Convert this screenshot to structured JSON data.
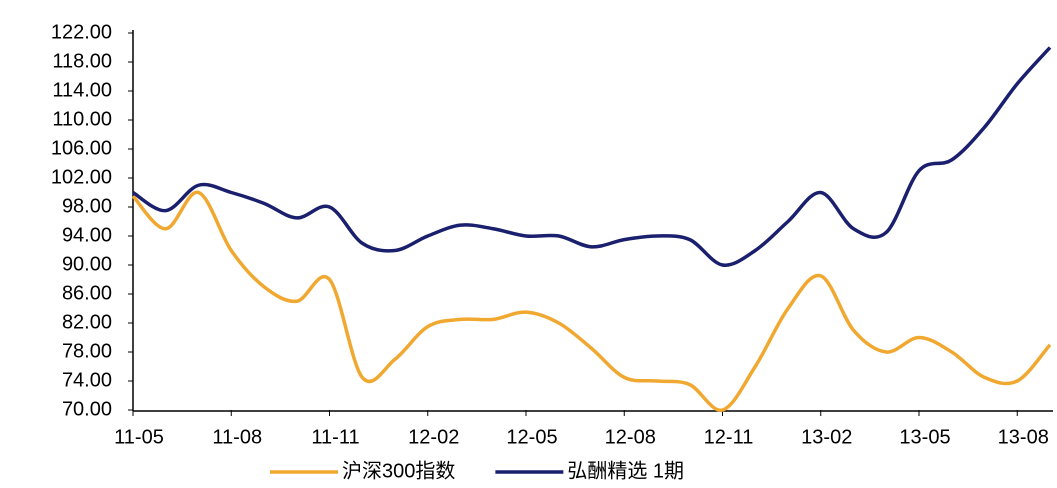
{
  "chart_data": {
    "type": "line",
    "categories": [
      "11-05",
      null,
      null,
      "11-08",
      null,
      null,
      "11-11",
      null,
      null,
      "12-02",
      null,
      null,
      "12-05",
      null,
      null,
      "12-08",
      null,
      null,
      "12-11",
      null,
      null,
      "13-02",
      null,
      null,
      "13-05",
      null,
      null,
      "13-08",
      null
    ],
    "series": [
      {
        "name": "沪深300指数",
        "color": "#f0a830",
        "values": [
          99.5,
          95,
          100,
          92,
          87,
          85,
          88,
          74.5,
          77,
          81.5,
          82.5,
          82.5,
          83.5,
          82,
          78.5,
          74.5,
          74,
          73.5,
          70,
          76,
          84,
          88.5,
          81,
          78,
          80,
          78,
          74.5,
          74,
          79
        ]
      },
      {
        "name": "弘酬精选 1期",
        "color": "#1a1f6e",
        "values": [
          100,
          97.5,
          101,
          100,
          98.5,
          96.5,
          98,
          93,
          92,
          94,
          95.5,
          95,
          94,
          94,
          92.5,
          93.5,
          94,
          93.5,
          90,
          92,
          96,
          100,
          95,
          94.5,
          103,
          104.5,
          109,
          115,
          120
        ]
      }
    ],
    "ylim": [
      70,
      122
    ],
    "yticks": [
      {
        "value": 70,
        "label": "70.00"
      },
      {
        "value": 74,
        "label": "74.00"
      },
      {
        "value": 78,
        "label": "78.00"
      },
      {
        "value": 82,
        "label": "82.00"
      },
      {
        "value": 86,
        "label": "86.00"
      },
      {
        "value": 90,
        "label": "90.00"
      },
      {
        "value": 94,
        "label": "94.00"
      },
      {
        "value": 98,
        "label": "98.00"
      },
      {
        "value": 102,
        "label": "102.00"
      },
      {
        "value": 106,
        "label": "106.00"
      },
      {
        "value": 110,
        "label": "110.00"
      },
      {
        "value": 114,
        "label": "114.00"
      },
      {
        "value": 118,
        "label": "118.00"
      },
      {
        "value": 122,
        "label": "122.00"
      }
    ],
    "grid": false,
    "legend": "bottom"
  }
}
